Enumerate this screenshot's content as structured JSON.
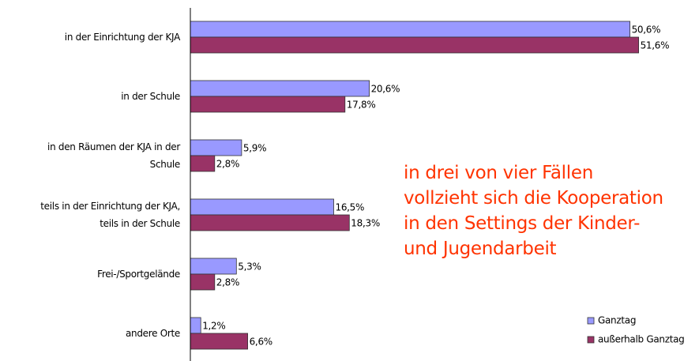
{
  "chart_data": {
    "type": "bar",
    "orientation": "horizontal",
    "categories": [
      "in der Einrichtung der KJA",
      "in der Schule",
      "in den Räumen der KJA in der Schule",
      "teils in der Einrichtung der KJA, teils in der Schule",
      "Frei-/Sportgelände",
      "andere Orte"
    ],
    "series": [
      {
        "name": "Ganztag",
        "color": "#9999ff",
        "values": [
          50.6,
          20.6,
          5.9,
          16.5,
          5.3,
          1.2
        ],
        "value_labels": [
          "50,6%",
          "20,6%",
          "5,9%",
          "16,5%",
          "5,3%",
          "1,2%"
        ]
      },
      {
        "name": "außerhalb Ganztag",
        "color": "#993366",
        "values": [
          51.6,
          17.8,
          2.8,
          18.3,
          2.8,
          6.6
        ],
        "value_labels": [
          "51,6%",
          "17,8%",
          "2,8%",
          "18,3%",
          "2,8%",
          "6,6%"
        ]
      }
    ],
    "annotation": [
      "in drei von vier Fällen",
      "vollzieht sich die Kooperation",
      "in den Settings der Kinder-",
      "und Jugendarbeit"
    ],
    "legend": "bottom-right"
  }
}
